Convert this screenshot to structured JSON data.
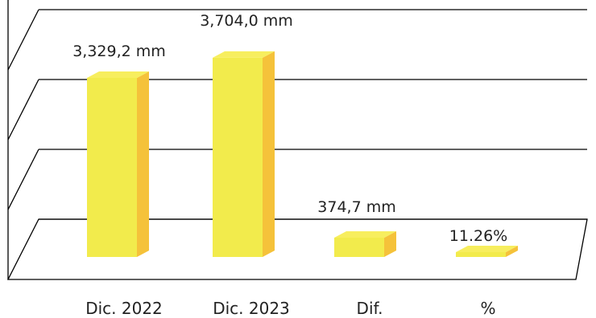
{
  "chart_data": {
    "type": "bar",
    "title": "",
    "xlabel": "",
    "ylabel": "",
    "ylim": [
      0,
      4000
    ],
    "grid": true,
    "categories": [
      "Dic. 2022",
      "Dic. 2023",
      "Dif.",
      "%"
    ],
    "values": [
      3329.2,
      3704.0,
      374.7,
      11.26
    ],
    "data_labels": [
      "3,329,2 mm",
      "3,704,0 mm",
      "374,7 mm",
      "11.26%"
    ],
    "colors": {
      "front": "#F2EB4C",
      "side": "#F5C23A",
      "top": "#F7EE5E"
    }
  }
}
